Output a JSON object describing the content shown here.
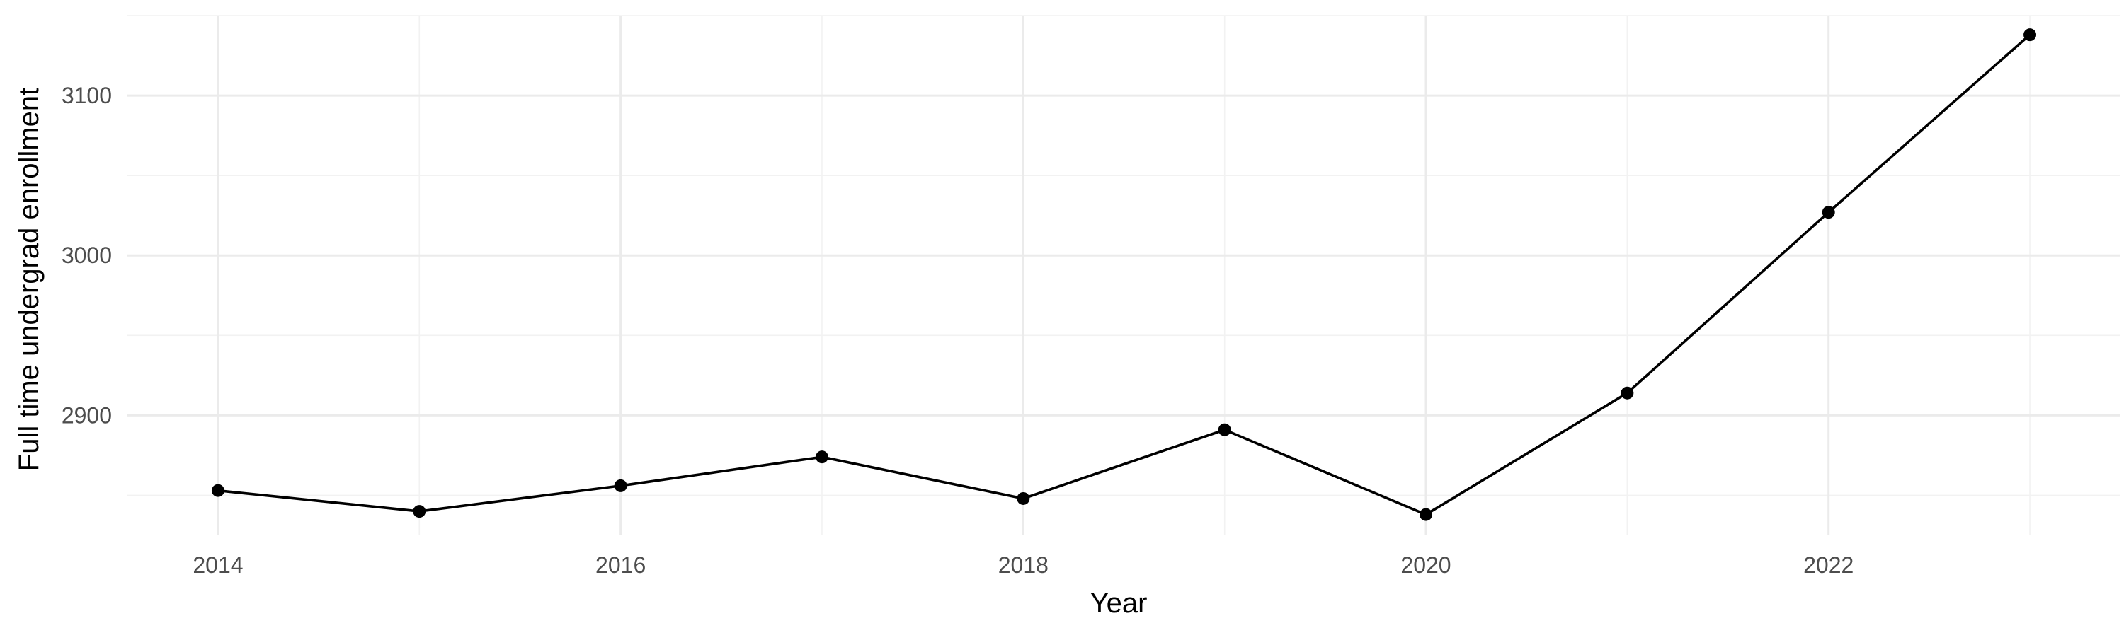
{
  "chart_data": {
    "type": "line",
    "title": "",
    "xlabel": "Year",
    "ylabel": "Full time undergrad enrollment",
    "x": [
      2014,
      2015,
      2016,
      2017,
      2018,
      2019,
      2020,
      2021,
      2022,
      2023
    ],
    "series": [
      {
        "values": [
          2853,
          2840,
          2856,
          2874,
          2848,
          2891,
          2838,
          2914,
          3027,
          3138
        ]
      }
    ],
    "xlim": [
      2013.55,
      2023.45
    ],
    "ylim": [
      2825,
      3150
    ],
    "x_major_ticks": [
      2014,
      2016,
      2018,
      2020,
      2022
    ],
    "x_minor_ticks": [
      2015,
      2017,
      2019,
      2021,
      2023
    ],
    "y_major_ticks": [
      2900,
      3000,
      3100
    ],
    "y_minor_ticks": [
      2850,
      2950,
      3050,
      3150
    ],
    "x_tick_labels": [
      "2014",
      "2016",
      "2018",
      "2020",
      "2022"
    ],
    "y_tick_labels": [
      "2900",
      "3000",
      "3100"
    ],
    "grid": true,
    "legend": "none",
    "colors": {
      "line": "#000000",
      "point": "#000000",
      "grid_major": "#ebebeb",
      "grid_minor": "#f2f2f2",
      "tick_text": "#4d4d4d"
    }
  }
}
